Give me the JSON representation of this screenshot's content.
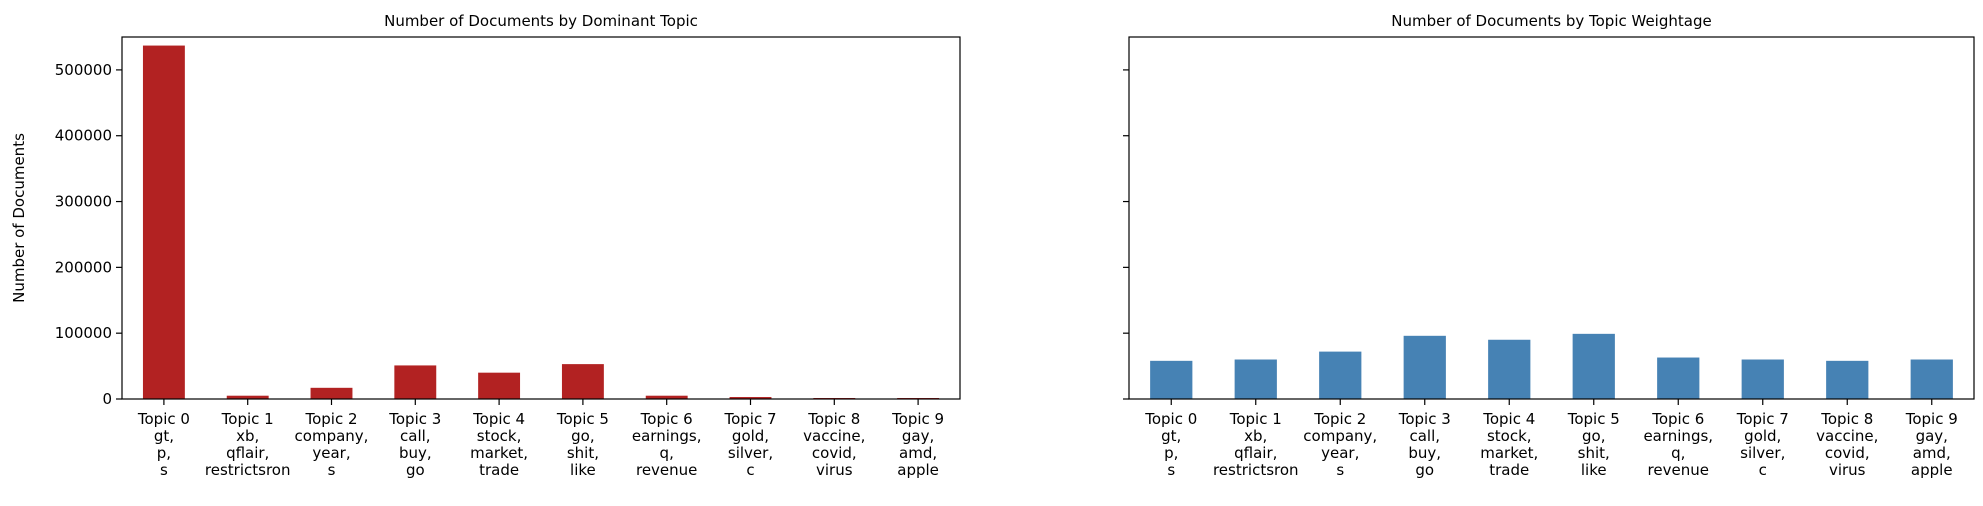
{
  "chart_data": [
    {
      "type": "bar",
      "title": "Number of Documents by Dominant Topic",
      "ylabel": "Number of Documents",
      "xlabel": "",
      "ylim": [
        0,
        550000
      ],
      "yticks": [
        0,
        100000,
        200000,
        300000,
        400000,
        500000
      ],
      "ytick_labels": [
        "0",
        "100000",
        "200000",
        "300000",
        "400000",
        "500000"
      ],
      "color": "#b22222",
      "categories": [
        [
          "Topic 0",
          "gt,",
          "p,",
          "s"
        ],
        [
          "Topic 1",
          "xb,",
          "qflair,",
          "restrictsron"
        ],
        [
          "Topic 2",
          "company,",
          "year,",
          "s"
        ],
        [
          "Topic 3",
          "call,",
          "buy,",
          "go"
        ],
        [
          "Topic 4",
          "stock,",
          "market,",
          "trade"
        ],
        [
          "Topic 5",
          "go,",
          "shit,",
          "like"
        ],
        [
          "Topic 6",
          "earnings,",
          "q,",
          "revenue"
        ],
        [
          "Topic 7",
          "gold,",
          "silver,",
          "c"
        ],
        [
          "Topic 8",
          "vaccine,",
          "covid,",
          "virus"
        ],
        [
          "Topic 9",
          "gay,",
          "amd,",
          "apple"
        ]
      ],
      "values": [
        537000,
        5000,
        17000,
        51000,
        40000,
        53000,
        5000,
        3000,
        1500,
        1500
      ]
    },
    {
      "type": "bar",
      "title": "Number of Documents by Topic Weightage",
      "ylabel": "",
      "xlabel": "",
      "ylim": [
        0,
        550000
      ],
      "yticks": [
        0,
        100000,
        200000,
        300000,
        400000,
        500000
      ],
      "ytick_labels": [],
      "color": "#4682b4",
      "categories": [
        [
          "Topic 0",
          "gt,",
          "p,",
          "s"
        ],
        [
          "Topic 1",
          "xb,",
          "qflair,",
          "restrictsron"
        ],
        [
          "Topic 2",
          "company,",
          "year,",
          "s"
        ],
        [
          "Topic 3",
          "call,",
          "buy,",
          "go"
        ],
        [
          "Topic 4",
          "stock,",
          "market,",
          "trade"
        ],
        [
          "Topic 5",
          "go,",
          "shit,",
          "like"
        ],
        [
          "Topic 6",
          "earnings,",
          "q,",
          "revenue"
        ],
        [
          "Topic 7",
          "gold,",
          "silver,",
          "c"
        ],
        [
          "Topic 8",
          "vaccine,",
          "covid,",
          "virus"
        ],
        [
          "Topic 9",
          "gay,",
          "amd,",
          "apple"
        ]
      ],
      "values": [
        58000,
        60000,
        72000,
        96000,
        90000,
        99000,
        63000,
        60000,
        58000,
        60000
      ]
    }
  ]
}
